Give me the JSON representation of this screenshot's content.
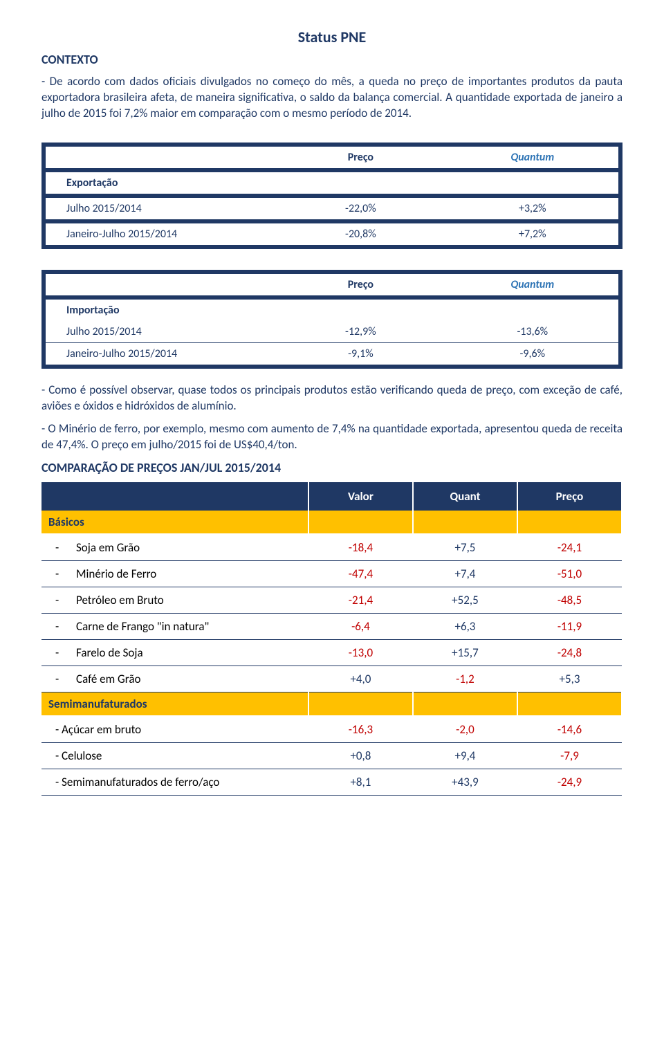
{
  "title": "Status PNE",
  "contexto": {
    "heading": "CONTEXTO",
    "p1": "- De acordo com dados oficiais divulgados no começo do mês, a queda no preço de importantes produtos da pauta exportadora brasileira afeta, de maneira significativa, o saldo da balança comercial. A quantidade exportada de janeiro a julho de 2015 foi 7,2% maior em comparação com o mesmo período de 2014."
  },
  "exportacao": {
    "title": "Exportação",
    "headers": {
      "preco": "Preço",
      "quantum": "Quantum"
    },
    "rows": [
      {
        "label": "Julho 2015/2014",
        "preco": "-22,0%",
        "quantum": "+3,2%"
      },
      {
        "label": "Janeiro-Julho 2015/2014",
        "preco": "-20,8%",
        "quantum": "+7,2%"
      }
    ]
  },
  "importacao": {
    "title": "Importação",
    "headers": {
      "preco": "Preço",
      "quantum": "Quantum"
    },
    "rows": [
      {
        "label": "Julho 2015/2014",
        "preco": "-12,9%",
        "quantum": "-13,6%"
      },
      {
        "label": "Janeiro-Julho 2015/2014",
        "preco": "-9,1%",
        "quantum": "-9,6%"
      }
    ]
  },
  "obs": {
    "p1": "- Como é possível observar, quase todos os principais produtos estão verificando queda de preço, com exceção de café, aviões e óxidos e hidróxidos de alumínio.",
    "p2": "- O Minério de ferro, por exemplo, mesmo com aumento de 7,4% na quantidade exportada, apresentou queda de receita de 47,4%. O preço em julho/2015 foi de US$40,4/ton."
  },
  "comparacao": {
    "heading": "COMPARAÇÃO DE PREÇOS JAN/JUL 2015/2014",
    "headers": {
      "valor": "Valor",
      "quant": "Quant",
      "preco": "Preço"
    },
    "basicos": {
      "label": "Básicos",
      "rows": [
        {
          "label": "Soja em Grão",
          "valor": "-18,4",
          "quant": "+7,5",
          "preco": "-24,1"
        },
        {
          "label": "Minério de Ferro",
          "valor": "-47,4",
          "quant": "+7,4",
          "preco": "-51,0"
        },
        {
          "label": "Petróleo em Bruto",
          "valor": "-21,4",
          "quant": "+52,5",
          "preco": "-48,5"
        },
        {
          "label": "Carne de Frango \"in natura\"",
          "valor": "-6,4",
          "quant": "+6,3",
          "preco": "-11,9"
        },
        {
          "label": "Farelo de Soja",
          "valor": "-13,0",
          "quant": "+15,7",
          "preco": "-24,8"
        },
        {
          "label": "Café em Grão",
          "valor": "+4,0",
          "quant": "-1,2",
          "preco": "+5,3"
        }
      ]
    },
    "semi": {
      "label": "Semimanufaturados",
      "rows": [
        {
          "label": "- Açúcar em bruto",
          "valor": "-16,3",
          "quant": "-2,0",
          "preco": "-14,6"
        },
        {
          "label": "- Celulose",
          "valor": "+0,8",
          "quant": "+9,4",
          "preco": "-7,9"
        },
        {
          "label": "- Semimanufaturados de ferro/aço",
          "valor": "+8,1",
          "quant": "+43,9",
          "preco": "-24,9"
        }
      ]
    }
  },
  "colors": {
    "accent": "#1f3864",
    "highlight": "#ffc000",
    "neg": "#c00000",
    "link": "#2e74b5"
  }
}
